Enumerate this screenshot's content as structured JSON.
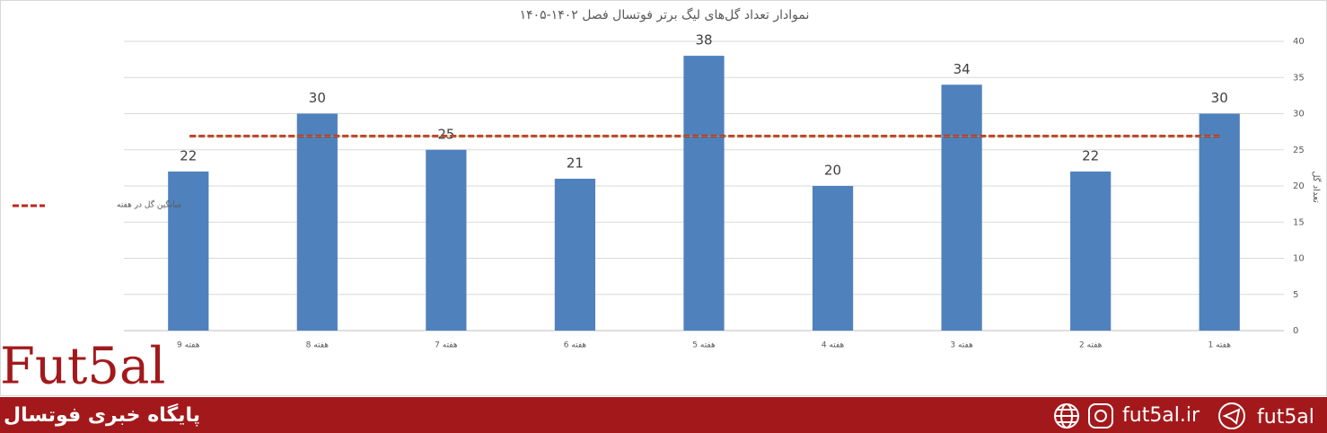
{
  "chart_data": {
    "type": "bar",
    "title": "نموادار تعداد گل‌های لیگ برتر فوتسال فصل ۱۴۰۲-۱۴۰۵",
    "y_label": "تعداد گل",
    "categories": [
      "هفته 1",
      "هفته 2",
      "هفته 3",
      "هفته 4",
      "هفته 5",
      "هفته 6",
      "هفته 7",
      "هفته 8",
      "هفته 9"
    ],
    "series": [
      {
        "type": "bar",
        "color": "#4f81bd",
        "values": [
          30,
          22,
          34,
          20,
          38,
          21,
          25,
          30,
          22
        ]
      },
      {
        "type": "line",
        "name": "میانگین گل در هفته",
        "color": "#c0241c",
        "dashed": true,
        "values": [
          26.9,
          26.9,
          26.9,
          26.9,
          26.9,
          26.9,
          26.9,
          26.9,
          26.9
        ]
      }
    ],
    "ylim": [
      0,
      40
    ],
    "yticks": [
      0,
      5,
      10,
      15,
      20,
      25,
      30,
      35,
      40
    ],
    "grid": true,
    "x_reversed": true,
    "y_axis_side": "right",
    "legend": "left"
  },
  "footer": {
    "logo": "Fut5al",
    "tagline": "پایگاه خبری فوتسال",
    "website": "fut5al.ir",
    "handle": "fut5al"
  }
}
